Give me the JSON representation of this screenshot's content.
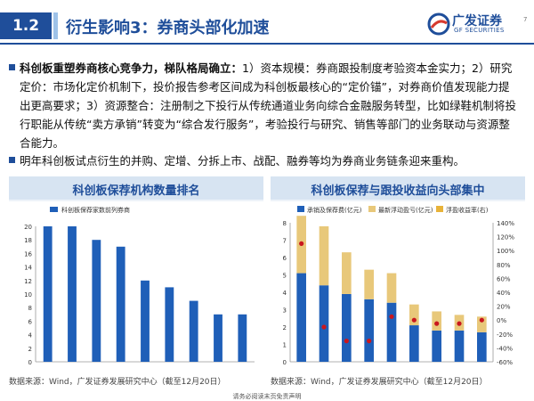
{
  "header": {
    "section_number": "1.2",
    "title": "衍生影响3：券商头部化加速",
    "logo_cn": "广发证券",
    "logo_en": "GF SECURITIES",
    "page_number": "7"
  },
  "bullets": [
    {
      "lead": "科创板重塑券商核心竞争力，梯队格局确立：",
      "text": "1）资本规模：券商跟投制度考验资本金实力；2）研究定价：市场化定价机制下，投价报告参考区间成为科创板最核心的“定价锚”，对券商价值发现能力提出更高要求；3）资源整合：注册制之下投行从传统通道业务向综合金融服务转型，比如绿鞋机制将投行职能从传统“卖方承销”转变为“综合发行服务”，考验投行与研究、销售等部门的业务联动与资源整合能力。"
    },
    {
      "lead": "",
      "text": "明年科创板试点衍生的并购、定增、分拆上市、战配、融券等均为券商业务链条迎来重构。"
    }
  ],
  "charts": {
    "left_title": "科创板保荐机构数量排名",
    "right_title": "科创板保荐与跟投收益向头部集中",
    "left_source": "数据来源：Wind，广发证券发展研究中心（截至12月20日）",
    "right_source": "数据来源：Wind，广发证券发展研究中心（截至12月20日）"
  },
  "footer": "请务必阅读末页免责声明",
  "colors": {
    "primary": "#1f4e9a",
    "bar_blue": "#1f5fb8",
    "bar_gold": "#e8c87a",
    "dot_red": "#c9171e"
  },
  "chart_data": [
    {
      "type": "bar",
      "title": "科创板保荐机构数量排名",
      "legend": "top-left",
      "series": [
        {
          "name": "科创板保荐家数前列券商",
          "values": [
            20,
            20,
            18,
            17,
            12,
            11,
            9,
            7,
            7
          ]
        }
      ],
      "ylim": [
        0,
        20
      ],
      "yticks": [
        0,
        2,
        4,
        6,
        8,
        10,
        12,
        14,
        16,
        18,
        20
      ],
      "grid": false
    },
    {
      "type": "bar",
      "title": "科创板保荐与跟投收益向头部集中",
      "legend": "top",
      "series": [
        {
          "name": "承销及保荐费(亿元)",
          "type": "bar",
          "stack": "a",
          "values": [
            5.1,
            4.4,
            3.9,
            3.6,
            3.4,
            2.1,
            1.8,
            1.8,
            1.7
          ]
        },
        {
          "name": "最新浮动盈亏(亿元)",
          "type": "bar",
          "stack": "a",
          "values": [
            3.3,
            3.4,
            2.4,
            1.7,
            1.7,
            1.2,
            1.1,
            0.9,
            0.9
          ]
        },
        {
          "name": "浮盈收益率(右)",
          "type": "scatter",
          "axis": "right",
          "values": [
            110,
            -10,
            -30,
            -30,
            5,
            0,
            -5,
            -5,
            0
          ]
        }
      ],
      "ylim": [
        0,
        8
      ],
      "yticks": [
        0,
        1,
        2,
        3,
        4,
        5,
        6,
        7,
        8
      ],
      "y2lim": [
        -60,
        140
      ],
      "y2ticks": [
        "-60%",
        "-40%",
        "-20%",
        "0%",
        "20%",
        "40%",
        "60%",
        "80%",
        "100%",
        "120%",
        "140%"
      ],
      "grid": false
    }
  ]
}
